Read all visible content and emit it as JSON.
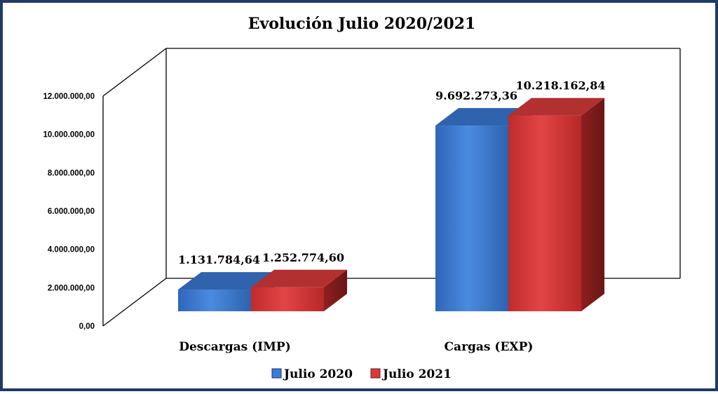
{
  "chart_data": {
    "type": "bar",
    "title": "Evolución Julio 2020/2021",
    "categories": [
      "Descargas (IMP)",
      "Cargas (EXP)"
    ],
    "series": [
      {
        "name": "Julio 2020",
        "values": [
          1131784.64,
          9692273.36
        ],
        "labels": [
          "1.131.784,64",
          "9.692.273,36"
        ],
        "color": "#3a7bd5"
      },
      {
        "name": "Julio 2021",
        "values": [
          1252774.6,
          10218162.84
        ],
        "labels": [
          "1.252.774,60",
          "10.218.162,84"
        ],
        "color": "#d63a3a"
      }
    ],
    "yticks": [
      "0,00",
      "2.000.000,00",
      "4.000.000,00",
      "6.000.000,00",
      "8.000.000,00",
      "10.000.000,00",
      "12.000.000,00"
    ],
    "ylim": [
      0,
      12000000
    ],
    "legend": "bottom",
    "style": "3d-bar",
    "border_color": "#1f3a68"
  }
}
